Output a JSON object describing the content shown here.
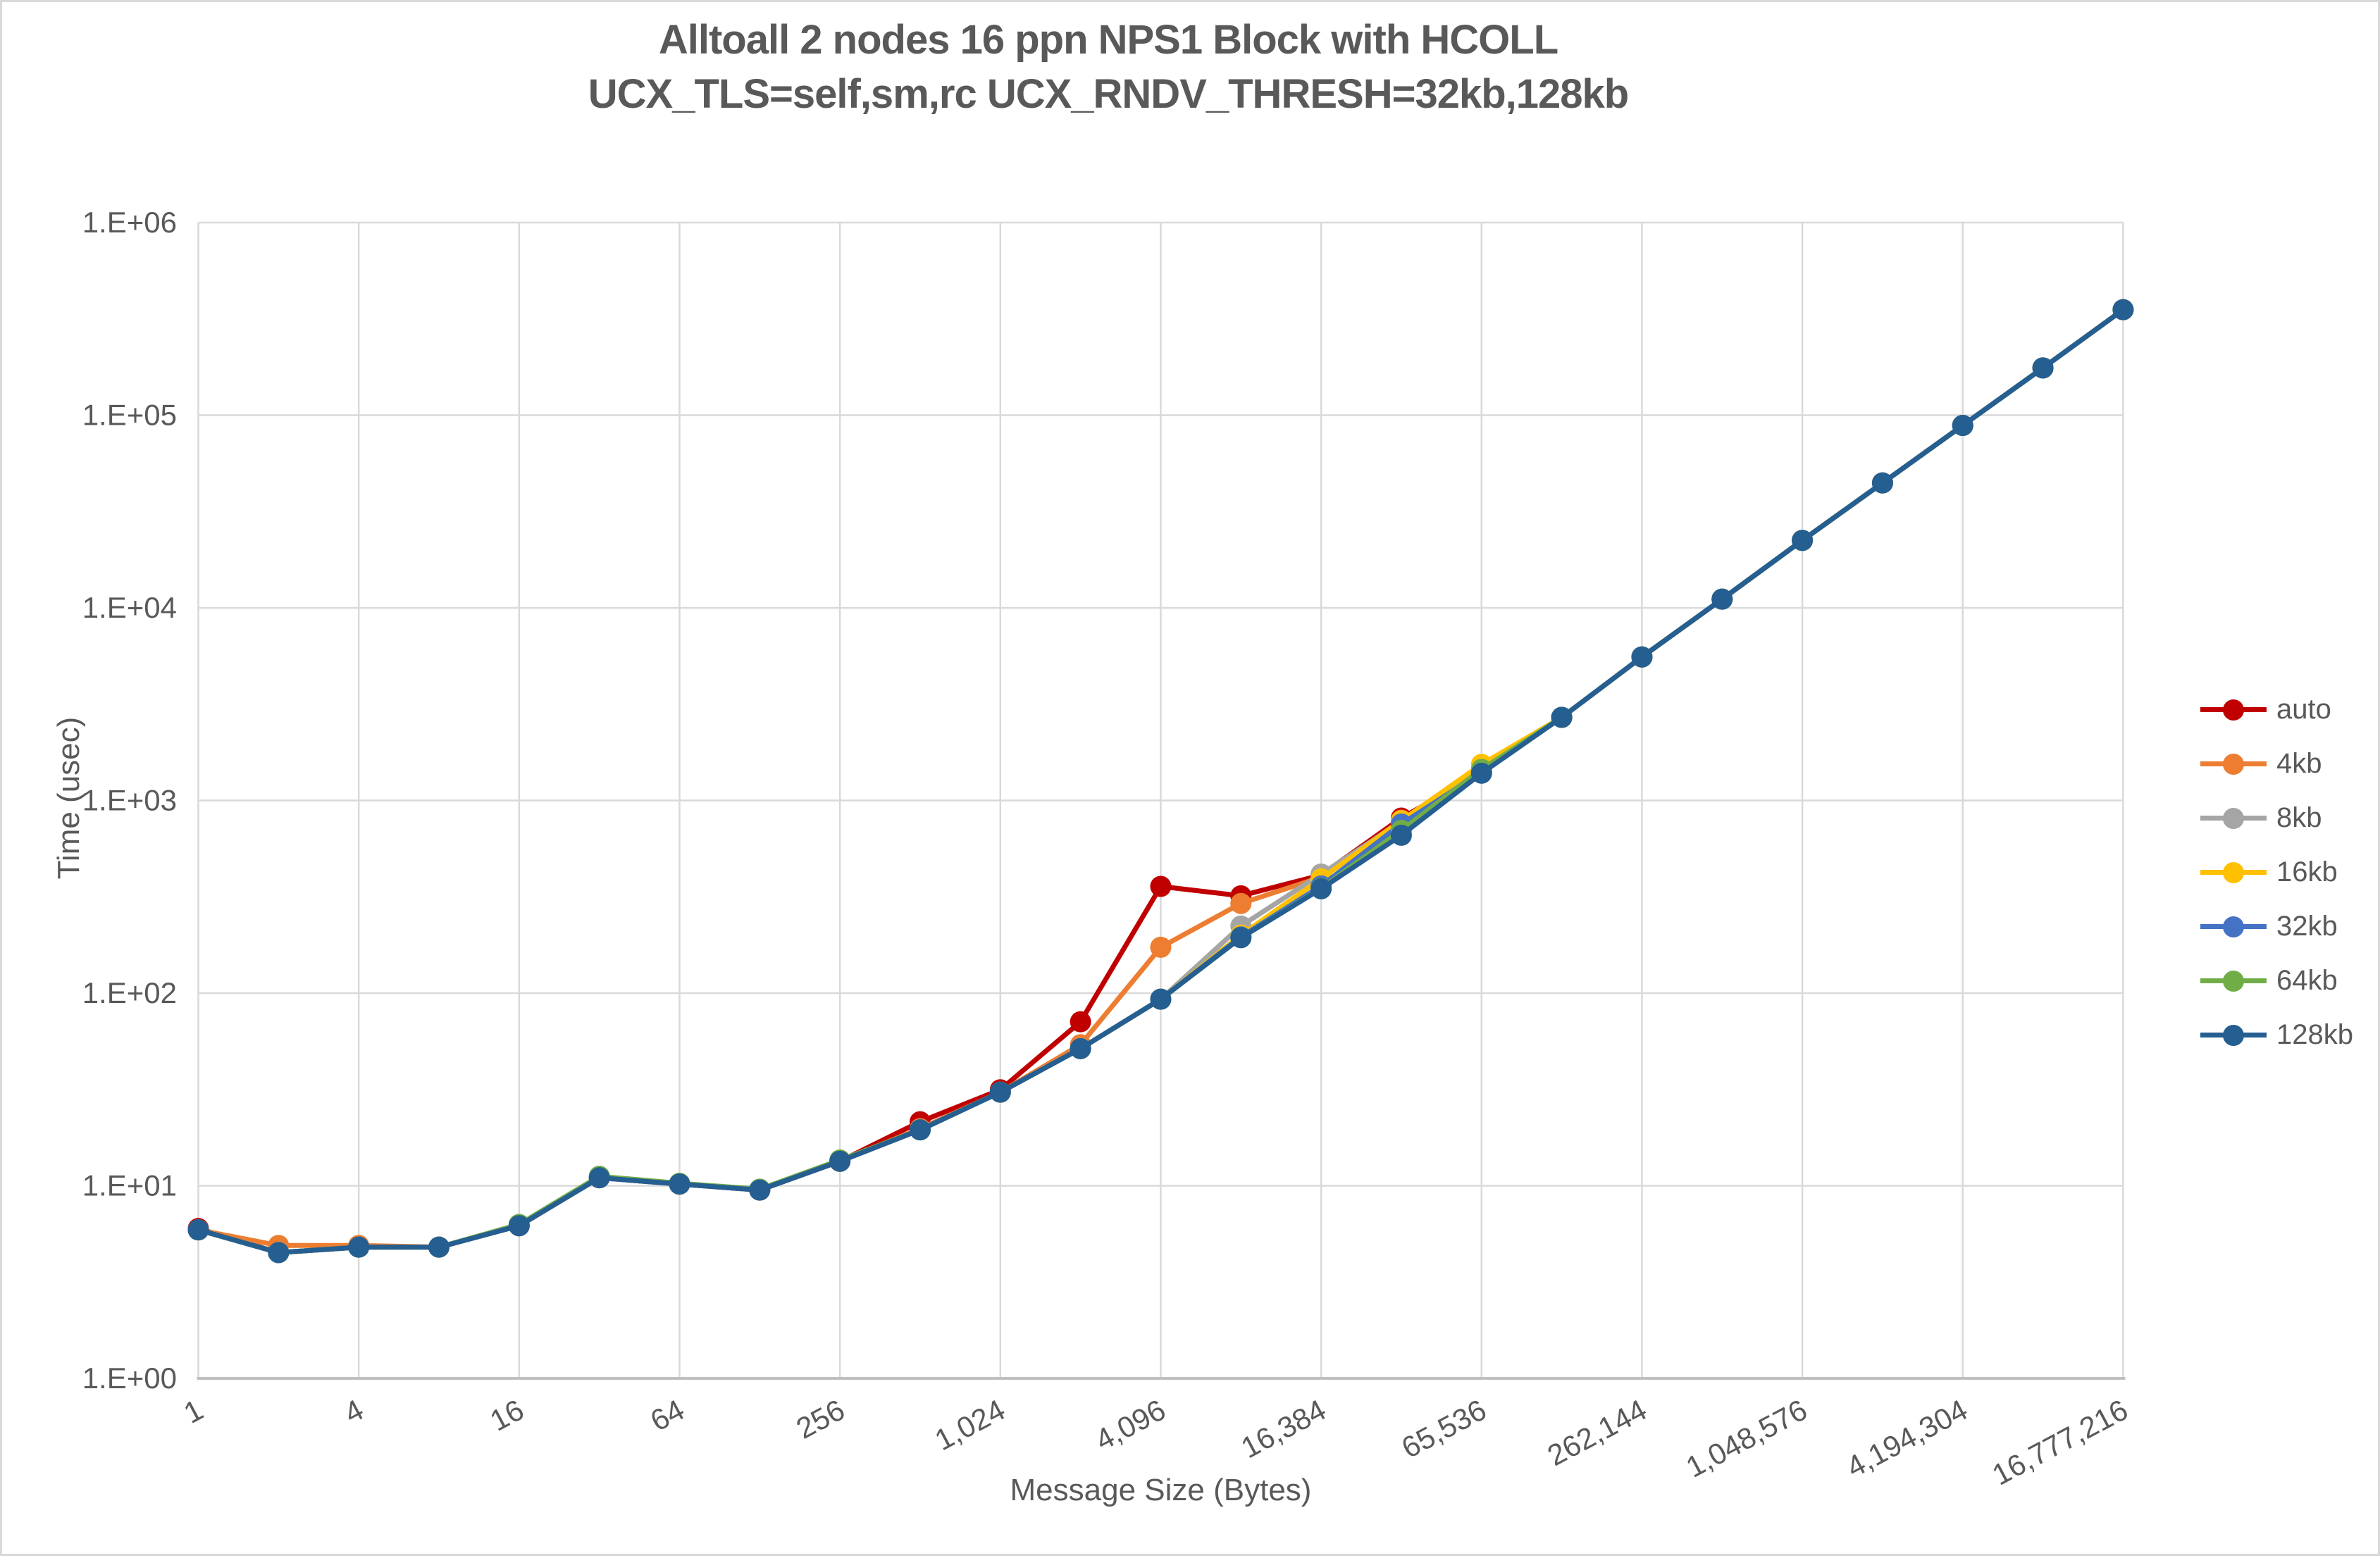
{
  "title": {
    "line1": "Alltoall 2 nodes 16 ppn NPS1 Block with HCOLL",
    "line2": "UCX_TLS=self,sm,rc UCX_RNDV_THRESH=32kb,128kb"
  },
  "axes": {
    "x_title": "Message Size (Bytes)",
    "y_title": "Time (usec)",
    "y_ticks": [
      "1.E+00",
      "1.E+01",
      "1.E+02",
      "1.E+03",
      "1.E+04",
      "1.E+05",
      "1.E+06"
    ],
    "x_ticks": [
      "1",
      "4",
      "16",
      "64",
      "256",
      "1,024",
      "4,096",
      "16,384",
      "65,536",
      "262,144",
      "1,048,576",
      "4,194,304",
      "16,777,216"
    ]
  },
  "style_colors": {
    "grid": "#D9D9D9",
    "axis_line": "#BFBFBF",
    "text": "#595959",
    "background": "#FFFFFF"
  },
  "chart_data": {
    "type": "line",
    "title": "Alltoall 2 nodes 16 ppn NPS1 Block with HCOLL UCX_TLS=self,sm,rc UCX_RNDV_THRESH=32kb,128kb",
    "xlabel": "Message Size (Bytes)",
    "ylabel": "Time (usec)",
    "x_scale": "log2",
    "y_scale": "log10",
    "ylim": [
      1,
      1000000
    ],
    "xlim": [
      1,
      16777216
    ],
    "grid": true,
    "legend_position": "right",
    "categories": [
      1,
      2,
      4,
      8,
      16,
      32,
      64,
      128,
      256,
      512,
      1024,
      2048,
      4096,
      8192,
      16384,
      32768,
      65536,
      131072,
      262144,
      524288,
      1048576,
      2097152,
      4194304,
      8388608,
      16777216
    ],
    "series": [
      {
        "name": "auto",
        "color": "#C00000",
        "values": [
          6.0,
          4.5,
          4.8,
          4.8,
          6.2,
          11.0,
          10.2,
          9.5,
          13.4,
          21.5,
          31.5,
          71,
          358,
          320,
          410,
          810,
          1400,
          2700,
          5560,
          11100,
          22400,
          44500,
          88500,
          176000,
          353000
        ]
      },
      {
        "name": "4kb",
        "color": "#ED7D31",
        "values": [
          5.9,
          4.9,
          4.9,
          4.8,
          6.2,
          11.0,
          10.2,
          9.5,
          13.4,
          19.8,
          30.6,
          54,
          173,
          292,
          400,
          790,
          1400,
          2700,
          5560,
          11100,
          22400,
          44500,
          88500,
          176000,
          353000
        ]
      },
      {
        "name": "8kb",
        "color": "#A5A5A5",
        "values": [
          5.9,
          4.5,
          4.8,
          4.8,
          6.2,
          11.0,
          10.2,
          9.5,
          13.4,
          19.5,
          30.6,
          51.5,
          93,
          223,
          415,
          775,
          1400,
          2700,
          5560,
          11100,
          22400,
          44500,
          88500,
          176000,
          353000
        ]
      },
      {
        "name": "16kb",
        "color": "#FFC000",
        "values": [
          5.9,
          4.5,
          4.8,
          4.8,
          6.2,
          11.0,
          10.2,
          9.5,
          13.4,
          19.5,
          30.6,
          51.5,
          93,
          200,
          392,
          785,
          1540,
          2700,
          5560,
          11100,
          22400,
          44500,
          88500,
          176000,
          353000
        ]
      },
      {
        "name": "32kb",
        "color": "#4472C4",
        "values": [
          5.9,
          4.5,
          4.8,
          4.8,
          6.2,
          11.0,
          10.2,
          9.5,
          13.4,
          19.5,
          30.6,
          51.5,
          93,
          196,
          360,
          755,
          1400,
          2700,
          5560,
          11100,
          22400,
          44500,
          88500,
          176000,
          353000
        ]
      },
      {
        "name": "64kb",
        "color": "#70AD47",
        "values": [
          5.9,
          4.5,
          4.8,
          4.8,
          6.3,
          11.2,
          10.3,
          9.6,
          13.6,
          19.5,
          30.6,
          51.5,
          93,
          194,
          350,
          700,
          1450,
          2700,
          5560,
          11100,
          22400,
          44500,
          88500,
          176000,
          353000
        ]
      },
      {
        "name": "128kb",
        "color": "#255E91",
        "values": [
          5.9,
          4.5,
          4.8,
          4.8,
          6.2,
          11.0,
          10.2,
          9.5,
          13.4,
          19.5,
          30.6,
          51.5,
          93,
          194,
          348,
          660,
          1385,
          2700,
          5560,
          11100,
          22400,
          44500,
          88500,
          176000,
          353000
        ]
      }
    ]
  }
}
